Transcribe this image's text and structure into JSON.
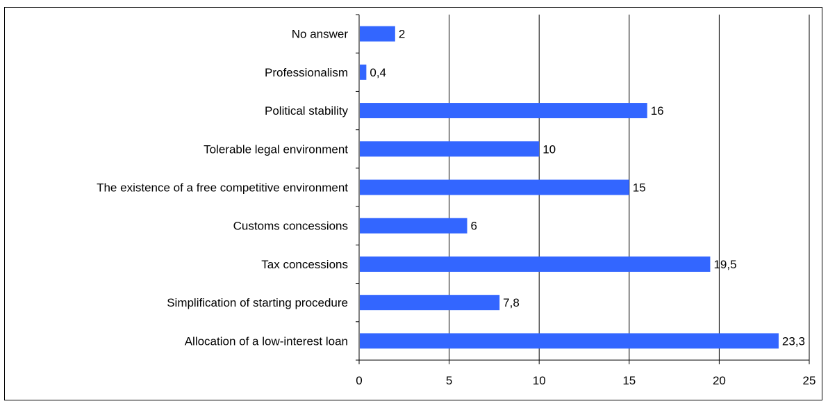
{
  "chart_data": {
    "type": "bar",
    "orientation": "horizontal",
    "categories": [
      "No answer",
      "Professionalism",
      "Political stability",
      "Tolerable legal environment",
      "The existence of a free competitive environment",
      "Customs concessions",
      "Tax concessions",
      "Simplification of starting procedure",
      "Allocation of a low-interest loan"
    ],
    "values": [
      2,
      0.4,
      16,
      10,
      15,
      6,
      19.5,
      7.8,
      23.3
    ],
    "value_labels": [
      "2",
      "0,4",
      "16",
      "10",
      "15",
      "6",
      "19,5",
      "7,8",
      "23,3"
    ],
    "xlim": [
      0,
      25
    ],
    "xticks": [
      0,
      5,
      10,
      15,
      20,
      25
    ],
    "grid": true,
    "legend": "none",
    "bar_color": "#3366FF"
  }
}
